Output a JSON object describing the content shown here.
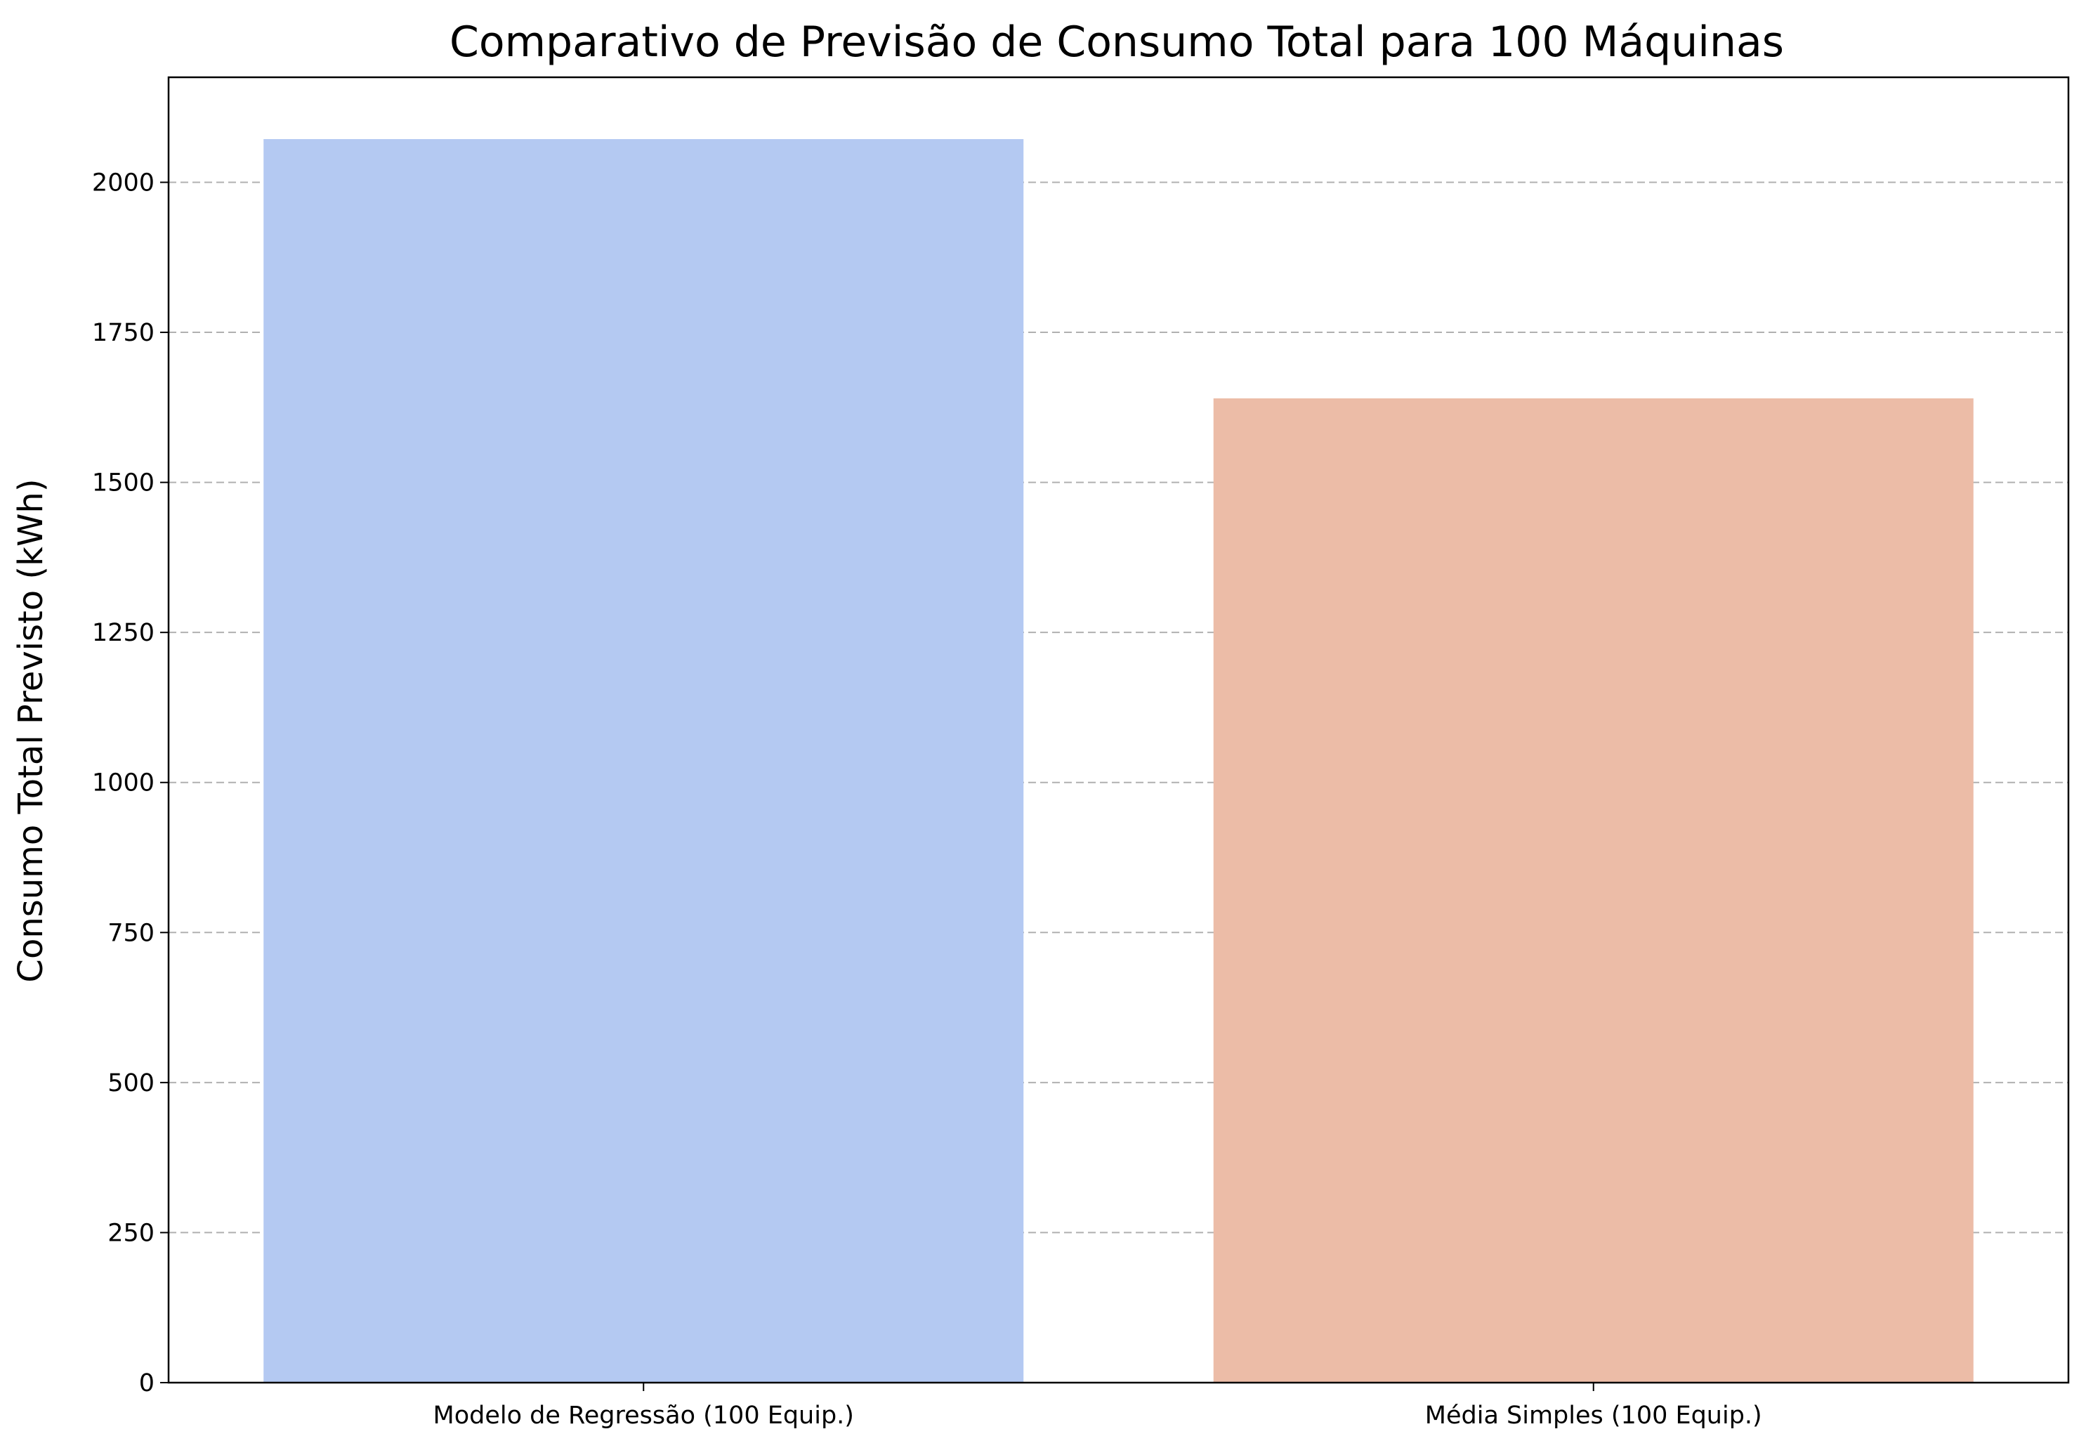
{
  "chart_data": {
    "type": "bar",
    "title": "Comparativo de Previsão de Consumo Total para 100 Máquinas",
    "xlabel": "",
    "ylabel": "Consumo Total Previsto (kWh)",
    "categories": [
      "Modelo de Regressão (100 Equip.)",
      "Média Simples (100 Equip.)"
    ],
    "values": [
      2072,
      1640
    ],
    "colors": [
      "#b4c9f2",
      "#ecbca7"
    ],
    "ylim": [
      0,
      2175
    ],
    "yticks": [
      0,
      250,
      500,
      750,
      1000,
      1250,
      1500,
      1750,
      2000
    ],
    "grid": "y-dashed",
    "legend": "none"
  }
}
